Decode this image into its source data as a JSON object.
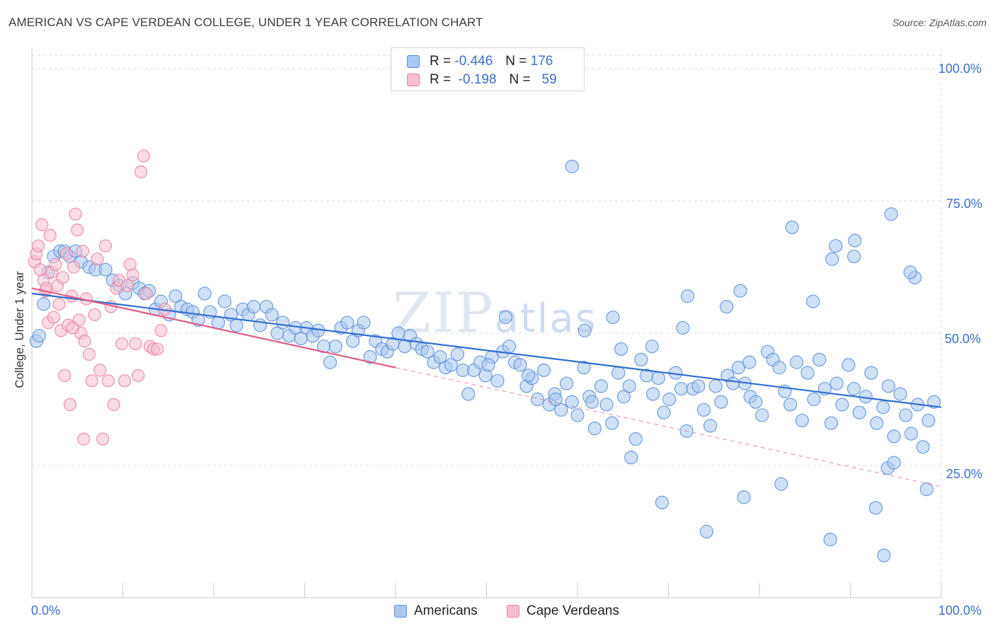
{
  "header": {
    "title": "AMERICAN VS CAPE VERDEAN COLLEGE, UNDER 1 YEAR CORRELATION CHART",
    "source": "Source: ZipAtlas.com"
  },
  "legend": {
    "rows": [
      {
        "r_label": "R =",
        "r_value": "-0.446",
        "n_label": "N =",
        "n_value": "176"
      },
      {
        "r_label": "R =",
        "r_value": "-0.198",
        "n_label": "N =",
        "n_value": "59"
      }
    ],
    "series": [
      "Americans",
      "Cape Verdeans"
    ]
  },
  "watermark": {
    "big": "ZIP",
    "small": "atlas"
  },
  "colors": {
    "blue_fill": "#a9c7f0",
    "blue_stroke": "#5a8fd8",
    "blue_line": "#2f6fd0",
    "pink_fill": "#f6bfd0",
    "pink_stroke": "#e9829f",
    "pink_line": "#e05c86",
    "tick_text": "#3a6fd0",
    "grid": "#dcdcdc"
  },
  "chart_data": {
    "type": "scatter",
    "title": "AMERICAN VS CAPE VERDEAN COLLEGE, UNDER 1 YEAR CORRELATION CHART",
    "xlabel": "",
    "ylabel": "College, Under 1 year",
    "xlim": [
      0,
      100
    ],
    "ylim": [
      0,
      105
    ],
    "x_tick_labels": [
      "0.0%",
      "100.0%"
    ],
    "y_ticks": [
      25,
      50,
      75,
      100
    ],
    "y_tick_labels": [
      "25.0%",
      "50.0%",
      "75.0%",
      "100.0%"
    ],
    "grid": true,
    "legend_position": "top-center",
    "series": [
      {
        "name": "Americans",
        "stats": {
          "R": -0.446,
          "N": 176
        },
        "trend": {
          "x": [
            0,
            100
          ],
          "y": [
            57.5,
            36.0
          ],
          "style": "solid"
        },
        "points": [
          [
            0.5,
            48.5
          ],
          [
            0.8,
            49.5
          ],
          [
            1.3,
            55.5
          ],
          [
            1.8,
            61.5
          ],
          [
            2.4,
            64.5
          ],
          [
            3.1,
            65.5
          ],
          [
            3.6,
            65.5
          ],
          [
            4.2,
            64.5
          ],
          [
            4.8,
            65.5
          ],
          [
            5.4,
            63.5
          ],
          [
            6.3,
            62.5
          ],
          [
            7.0,
            62.0
          ],
          [
            8.1,
            62.0
          ],
          [
            8.9,
            60.0
          ],
          [
            9.6,
            59.0
          ],
          [
            10.3,
            57.5
          ],
          [
            11.1,
            59.5
          ],
          [
            11.8,
            58.5
          ],
          [
            12.4,
            57.5
          ],
          [
            12.9,
            58.0
          ],
          [
            13.6,
            54.5
          ],
          [
            14.2,
            56.0
          ],
          [
            15.1,
            53.5
          ],
          [
            15.8,
            57.0
          ],
          [
            16.4,
            55.0
          ],
          [
            17.1,
            54.5
          ],
          [
            17.7,
            54.0
          ],
          [
            18.3,
            52.5
          ],
          [
            19.0,
            57.5
          ],
          [
            19.6,
            54.0
          ],
          [
            20.5,
            52.0
          ],
          [
            21.2,
            56.0
          ],
          [
            21.9,
            53.5
          ],
          [
            22.5,
            51.5
          ],
          [
            23.2,
            54.5
          ],
          [
            23.8,
            53.5
          ],
          [
            24.4,
            55.0
          ],
          [
            25.1,
            51.5
          ],
          [
            25.8,
            55.0
          ],
          [
            26.4,
            53.5
          ],
          [
            27.0,
            50.0
          ],
          [
            27.6,
            52.0
          ],
          [
            28.3,
            49.5
          ],
          [
            29.0,
            51.0
          ],
          [
            29.6,
            49.0
          ],
          [
            30.2,
            51.0
          ],
          [
            30.9,
            49.5
          ],
          [
            31.5,
            50.5
          ],
          [
            32.1,
            47.5
          ],
          [
            32.8,
            44.5
          ],
          [
            33.4,
            47.5
          ],
          [
            34.0,
            51.0
          ],
          [
            34.7,
            52.0
          ],
          [
            35.3,
            48.5
          ],
          [
            35.9,
            50.5
          ],
          [
            36.5,
            52.0
          ],
          [
            37.2,
            45.5
          ],
          [
            37.8,
            48.5
          ],
          [
            38.5,
            47.0
          ],
          [
            39.1,
            46.5
          ],
          [
            39.7,
            48.0
          ],
          [
            40.3,
            50.0
          ],
          [
            41.0,
            47.5
          ],
          [
            41.6,
            49.5
          ],
          [
            42.3,
            48.0
          ],
          [
            42.9,
            47.0
          ],
          [
            43.5,
            46.5
          ],
          [
            44.2,
            44.5
          ],
          [
            44.9,
            45.5
          ],
          [
            45.5,
            43.5
          ],
          [
            46.1,
            44.0
          ],
          [
            46.8,
            46.0
          ],
          [
            47.4,
            43.0
          ],
          [
            48.0,
            38.5
          ],
          [
            48.6,
            43.0
          ],
          [
            49.3,
            44.5
          ],
          [
            49.9,
            42.0
          ],
          [
            50.6,
            45.5
          ],
          [
            51.2,
            41.0
          ],
          [
            51.8,
            46.5
          ],
          [
            52.5,
            47.5
          ],
          [
            53.1,
            44.5
          ],
          [
            53.7,
            44.0
          ],
          [
            54.4,
            40.0
          ],
          [
            55.0,
            41.5
          ],
          [
            55.6,
            37.5
          ],
          [
            56.3,
            43.0
          ],
          [
            56.9,
            36.5
          ],
          [
            57.5,
            38.5
          ],
          [
            58.2,
            35.5
          ],
          [
            58.8,
            40.5
          ],
          [
            59.4,
            37.0
          ],
          [
            60.0,
            34.5
          ],
          [
            60.7,
            43.5
          ],
          [
            61.3,
            38.0
          ],
          [
            61.9,
            32.0
          ],
          [
            62.6,
            40.0
          ],
          [
            63.2,
            36.5
          ],
          [
            63.8,
            33.0
          ],
          [
            64.5,
            42.5
          ],
          [
            65.1,
            38.0
          ],
          [
            65.7,
            40.0
          ],
          [
            66.4,
            30.0
          ],
          [
            67.0,
            45.0
          ],
          [
            67.6,
            42.0
          ],
          [
            68.3,
            38.5
          ],
          [
            68.9,
            41.5
          ],
          [
            69.5,
            35.0
          ],
          [
            70.1,
            37.5
          ],
          [
            70.8,
            42.5
          ],
          [
            71.4,
            39.5
          ],
          [
            72.0,
            31.5
          ],
          [
            72.7,
            39.5
          ],
          [
            73.3,
            40.0
          ],
          [
            73.9,
            35.5
          ],
          [
            74.6,
            32.5
          ],
          [
            75.2,
            40.0
          ],
          [
            75.8,
            37.0
          ],
          [
            76.5,
            42.0
          ],
          [
            77.1,
            40.5
          ],
          [
            77.7,
            43.5
          ],
          [
            78.4,
            40.5
          ],
          [
            79.0,
            38.0
          ],
          [
            79.6,
            37.0
          ],
          [
            80.3,
            34.5
          ],
          [
            80.9,
            46.5
          ],
          [
            81.5,
            45.0
          ],
          [
            82.2,
            43.5
          ],
          [
            82.8,
            39.0
          ],
          [
            83.4,
            36.5
          ],
          [
            84.1,
            44.5
          ],
          [
            84.7,
            33.5
          ],
          [
            85.3,
            42.5
          ],
          [
            86.0,
            37.5
          ],
          [
            86.6,
            45.0
          ],
          [
            87.2,
            39.5
          ],
          [
            87.9,
            33.0
          ],
          [
            88.5,
            40.5
          ],
          [
            89.1,
            36.5
          ],
          [
            89.8,
            44.0
          ],
          [
            90.4,
            39.5
          ],
          [
            91.0,
            35.0
          ],
          [
            91.7,
            38.0
          ],
          [
            92.3,
            42.5
          ],
          [
            92.9,
            33.0
          ],
          [
            93.6,
            36.0
          ],
          [
            94.2,
            40.0
          ],
          [
            94.8,
            30.5
          ],
          [
            95.5,
            38.5
          ],
          [
            96.1,
            34.5
          ],
          [
            96.7,
            31.0
          ],
          [
            97.4,
            36.5
          ],
          [
            98.0,
            28.5
          ],
          [
            98.6,
            33.5
          ],
          [
            99.2,
            37.0
          ],
          [
            52.1,
            53.0
          ],
          [
            63.9,
            53.0
          ],
          [
            59.4,
            81.5
          ],
          [
            72.1,
            57.0
          ],
          [
            77.9,
            58.0
          ],
          [
            78.9,
            44.5
          ],
          [
            85.9,
            56.0
          ],
          [
            90.4,
            64.5
          ],
          [
            83.6,
            70.0
          ],
          [
            76.4,
            55.0
          ],
          [
            71.6,
            51.0
          ],
          [
            60.8,
            50.5
          ],
          [
            64.8,
            47.0
          ],
          [
            68.2,
            47.5
          ],
          [
            50.2,
            44.0
          ],
          [
            54.6,
            42.0
          ],
          [
            57.6,
            37.5
          ],
          [
            61.6,
            37.0
          ],
          [
            65.9,
            26.5
          ],
          [
            69.3,
            18.0
          ],
          [
            74.2,
            12.5
          ],
          [
            82.4,
            21.5
          ],
          [
            87.8,
            11.0
          ],
          [
            92.8,
            17.0
          ],
          [
            93.7,
            8.0
          ],
          [
            94.5,
            72.5
          ],
          [
            97.1,
            60.5
          ],
          [
            94.1,
            24.5
          ],
          [
            88.0,
            64.0
          ],
          [
            78.3,
            19.0
          ],
          [
            88.4,
            66.5
          ],
          [
            98.4,
            20.5
          ],
          [
            94.8,
            25.5
          ],
          [
            96.6,
            61.5
          ],
          [
            90.5,
            67.5
          ]
        ]
      },
      {
        "name": "Cape Verdeans",
        "stats": {
          "R": -0.198,
          "N": 59
        },
        "trend": {
          "x": [
            0,
            40,
            100
          ],
          "y": [
            58.5,
            43.5,
            21.0
          ],
          "style": "solid-then-dashed"
        },
        "points": [
          [
            0.3,
            63.5
          ],
          [
            0.5,
            65.0
          ],
          [
            0.7,
            66.5
          ],
          [
            0.9,
            62.0
          ],
          [
            1.1,
            70.5
          ],
          [
            1.3,
            60.0
          ],
          [
            1.5,
            58.0
          ],
          [
            1.8,
            52.0
          ],
          [
            2.0,
            68.5
          ],
          [
            2.2,
            61.5
          ],
          [
            2.4,
            53.0
          ],
          [
            2.6,
            63.0
          ],
          [
            2.8,
            59.0
          ],
          [
            3.0,
            55.5
          ],
          [
            3.2,
            50.5
          ],
          [
            3.4,
            60.5
          ],
          [
            3.6,
            42.0
          ],
          [
            3.8,
            65.0
          ],
          [
            4.0,
            51.5
          ],
          [
            4.2,
            36.5
          ],
          [
            4.4,
            57.0
          ],
          [
            4.6,
            62.5
          ],
          [
            4.8,
            72.5
          ],
          [
            5.0,
            69.5
          ],
          [
            5.2,
            52.5
          ],
          [
            5.4,
            50.0
          ],
          [
            5.6,
            65.5
          ],
          [
            5.8,
            48.5
          ],
          [
            6.0,
            56.5
          ],
          [
            6.3,
            46.0
          ],
          [
            6.6,
            41.0
          ],
          [
            6.9,
            53.5
          ],
          [
            7.2,
            64.0
          ],
          [
            7.5,
            43.0
          ],
          [
            7.8,
            30.0
          ],
          [
            8.1,
            66.5
          ],
          [
            8.4,
            41.0
          ],
          [
            8.7,
            55.0
          ],
          [
            9.0,
            36.5
          ],
          [
            9.3,
            58.5
          ],
          [
            9.6,
            60.0
          ],
          [
            9.9,
            48.0
          ],
          [
            10.2,
            41.0
          ],
          [
            10.5,
            59.0
          ],
          [
            10.8,
            63.0
          ],
          [
            11.1,
            61.0
          ],
          [
            11.4,
            48.0
          ],
          [
            11.7,
            42.0
          ],
          [
            12.0,
            80.5
          ],
          [
            12.3,
            83.5
          ],
          [
            12.6,
            57.5
          ],
          [
            13.0,
            47.5
          ],
          [
            13.4,
            47.0
          ],
          [
            13.8,
            47.0
          ],
          [
            14.2,
            50.5
          ],
          [
            14.6,
            54.5
          ],
          [
            5.7,
            30.0
          ],
          [
            1.6,
            58.5
          ],
          [
            4.5,
            51.0
          ]
        ]
      }
    ]
  }
}
